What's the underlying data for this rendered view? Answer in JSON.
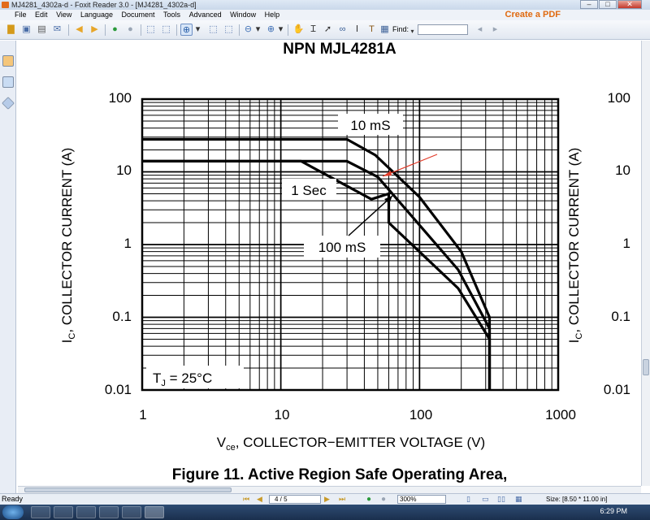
{
  "window": {
    "title": "MJ4281_4302a-d - Foxit Reader 3.0 - [MJ4281_4302a-d]",
    "create_pdf": "Create a PDF"
  },
  "menu": [
    "File",
    "Edit",
    "View",
    "Language",
    "Document",
    "Tools",
    "Advanced",
    "Window",
    "Help"
  ],
  "toolbar": {
    "find_label": "Find:",
    "find_value": ""
  },
  "document": {
    "heading": "NPN MJL4281A",
    "figure_caption": "Figure 11. Active Region Safe Operating Area,"
  },
  "status": {
    "ready": "Ready",
    "page": "4 / 5",
    "zoom": "300%",
    "size": "Size: [8.50 * 11.00 in]"
  },
  "taskbar": {
    "clock": "6:29 PM"
  },
  "chart_data": {
    "type": "line",
    "xscale": "log",
    "yscale": "log",
    "xlim": [
      1,
      1000
    ],
    "ylim": [
      0.01,
      100
    ],
    "xticks": [
      "1",
      "10",
      "100",
      "1000"
    ],
    "yticks": [
      "100",
      "10",
      "1",
      "0.1",
      "0.01"
    ],
    "y_label_main": "I",
    "y_label_sub": "C",
    "y_label_rest": ", COLLECTOR CURRENT (A)",
    "x_label_main": "V",
    "x_label_sub": "ce",
    "x_label_rest": ", COLLECTOR−EMITTER VOLTAGE (V)",
    "temp_main": "T",
    "temp_sub": "J",
    "temp_rest": " = 25°C",
    "grid": true,
    "series": [
      {
        "name": "10 mS",
        "points": [
          [
            1,
            28
          ],
          [
            30,
            28
          ],
          [
            48,
            17
          ],
          [
            100,
            4.5
          ],
          [
            200,
            0.8
          ],
          [
            320,
            0.1
          ],
          [
            320,
            0.01
          ]
        ]
      },
      {
        "name": "100 mS",
        "points": [
          [
            1,
            14
          ],
          [
            30,
            14
          ],
          [
            50,
            8.5
          ],
          [
            190,
            0.45
          ],
          [
            320,
            0.07
          ],
          [
            320,
            0.01
          ]
        ]
      },
      {
        "name": "1 Sec",
        "points": [
          [
            1,
            14
          ],
          [
            14,
            14
          ],
          [
            45,
            4.2
          ],
          [
            60,
            5.0
          ],
          [
            60,
            2.0
          ],
          [
            190,
            0.25
          ],
          [
            320,
            0.05
          ],
          [
            320,
            0.01
          ]
        ]
      }
    ],
    "annotations": [
      "10 mS",
      "1 Sec",
      "100 mS"
    ]
  }
}
